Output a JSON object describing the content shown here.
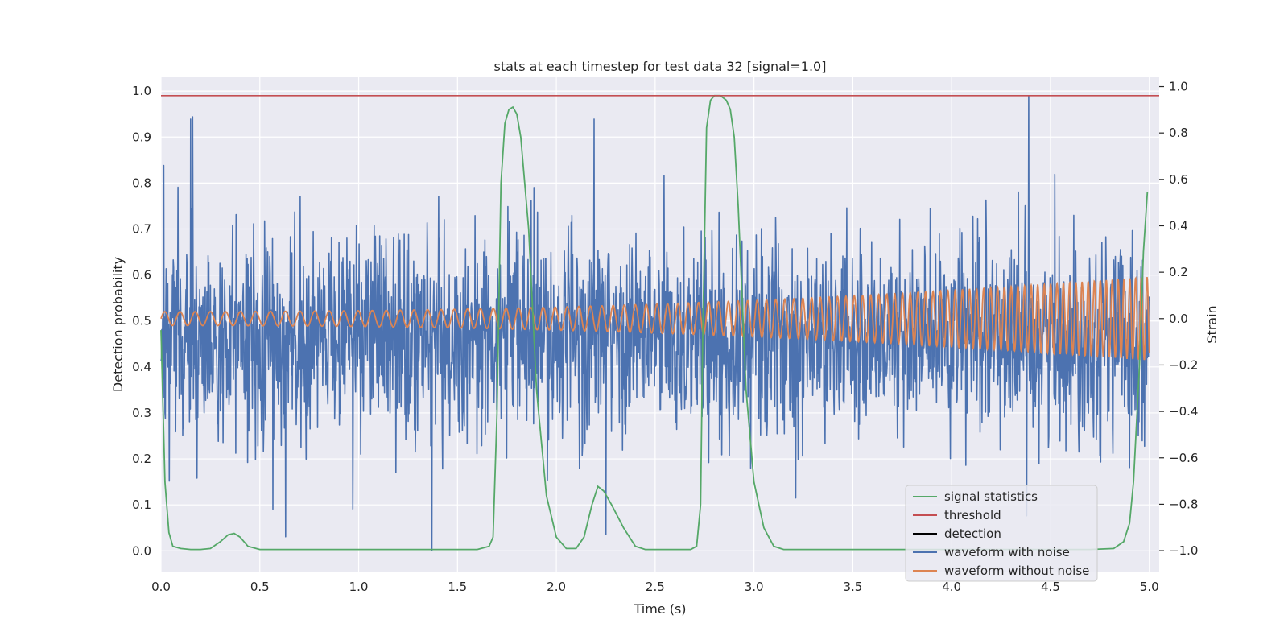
{
  "chart_data": {
    "type": "line",
    "title": "stats at each timestep for test data 32 [signal=1.0]",
    "xlabel": "Time (s)",
    "ylabel": "Detection probability",
    "y2label": "Strain",
    "xlim": [
      0.0,
      5.05
    ],
    "ylim": [
      -0.045,
      1.03
    ],
    "y2lim": [
      -1.09,
      1.04
    ],
    "xticks": [
      "0.0",
      "0.5",
      "1.0",
      "1.5",
      "2.0",
      "2.5",
      "3.0",
      "3.5",
      "4.0",
      "4.5",
      "5.0"
    ],
    "yticks": [
      "0.0",
      "0.1",
      "0.2",
      "0.3",
      "0.4",
      "0.5",
      "0.6",
      "0.7",
      "0.8",
      "0.9",
      "1.0"
    ],
    "y2ticks": [
      "−1.0",
      "−0.8",
      "−0.6",
      "−0.4",
      "−0.2",
      "0.0",
      "0.2",
      "0.4",
      "0.6",
      "0.8",
      "1.0"
    ],
    "grid": true,
    "background_color": "#eaeaf2",
    "legend_position": "lower-right",
    "colors": {
      "signal_statistics": "#55a868",
      "threshold": "#c44e52",
      "detection": "#000000",
      "waveform_with_noise": "#4c72b0",
      "waveform_without_noise": "#dd8452"
    },
    "threshold": 0.99,
    "signal_statistics": {
      "x": [
        0.0,
        0.02,
        0.04,
        0.06,
        0.1,
        0.15,
        0.2,
        0.25,
        0.3,
        0.34,
        0.37,
        0.4,
        0.44,
        0.5,
        0.8,
        1.2,
        1.6,
        1.66,
        1.68,
        1.7,
        1.72,
        1.74,
        1.76,
        1.78,
        1.8,
        1.82,
        1.86,
        1.9,
        1.95,
        2.0,
        2.05,
        2.1,
        2.14,
        2.18,
        2.21,
        2.24,
        2.28,
        2.34,
        2.4,
        2.45,
        2.5,
        2.6,
        2.68,
        2.71,
        2.73,
        2.74,
        2.76,
        2.78,
        2.8,
        2.83,
        2.86,
        2.88,
        2.9,
        2.92,
        2.94,
        2.96,
        3.0,
        3.05,
        3.1,
        3.15,
        3.2,
        3.5,
        4.0,
        4.5,
        4.7,
        4.82,
        4.87,
        4.9,
        4.92,
        4.95,
        4.97,
        4.99
      ],
      "y": [
        0.48,
        0.15,
        0.04,
        0.01,
        0.005,
        0.003,
        0.003,
        0.005,
        0.02,
        0.035,
        0.038,
        0.03,
        0.01,
        0.003,
        0.003,
        0.003,
        0.003,
        0.01,
        0.03,
        0.3,
        0.8,
        0.93,
        0.96,
        0.965,
        0.95,
        0.9,
        0.7,
        0.35,
        0.12,
        0.03,
        0.005,
        0.005,
        0.03,
        0.1,
        0.14,
        0.13,
        0.1,
        0.05,
        0.01,
        0.003,
        0.003,
        0.003,
        0.003,
        0.01,
        0.1,
        0.45,
        0.92,
        0.98,
        0.99,
        0.99,
        0.98,
        0.96,
        0.9,
        0.75,
        0.55,
        0.35,
        0.15,
        0.05,
        0.01,
        0.003,
        0.003,
        0.003,
        0.003,
        0.003,
        0.003,
        0.005,
        0.02,
        0.06,
        0.15,
        0.4,
        0.65,
        0.78
      ]
    },
    "waveform_with_noise": {
      "points": 2500,
      "mean": -0.08,
      "std": 0.21,
      "max": 0.96,
      "min": -1.0,
      "peaks": [
        {
          "x": 0.015,
          "y": 0.66
        },
        {
          "x": 0.15,
          "y": 0.86
        },
        {
          "x": 0.16,
          "y": 0.87
        },
        {
          "x": 0.63,
          "y": -0.94
        },
        {
          "x": 0.97,
          "y": -0.82
        },
        {
          "x": 1.37,
          "y": -1.0
        },
        {
          "x": 2.19,
          "y": 0.86
        },
        {
          "x": 2.25,
          "y": -0.93
        },
        {
          "x": 4.39,
          "y": 0.96
        }
      ]
    },
    "waveform_without_noise": {
      "amplitude_start": 0.03,
      "amplitude_end": 0.18,
      "frequency_start_hz": 13,
      "frequency_end_hz": 35,
      "t_start": 0.0,
      "t_end": 5.0
    },
    "legend": [
      {
        "label": "signal statistics",
        "color": "#55a868"
      },
      {
        "label": "threshold",
        "color": "#c44e52"
      },
      {
        "label": "detection",
        "color": "#000000"
      },
      {
        "label": "waveform with noise",
        "color": "#4c72b0"
      },
      {
        "label": "waveform without noise",
        "color": "#dd8452"
      }
    ]
  }
}
